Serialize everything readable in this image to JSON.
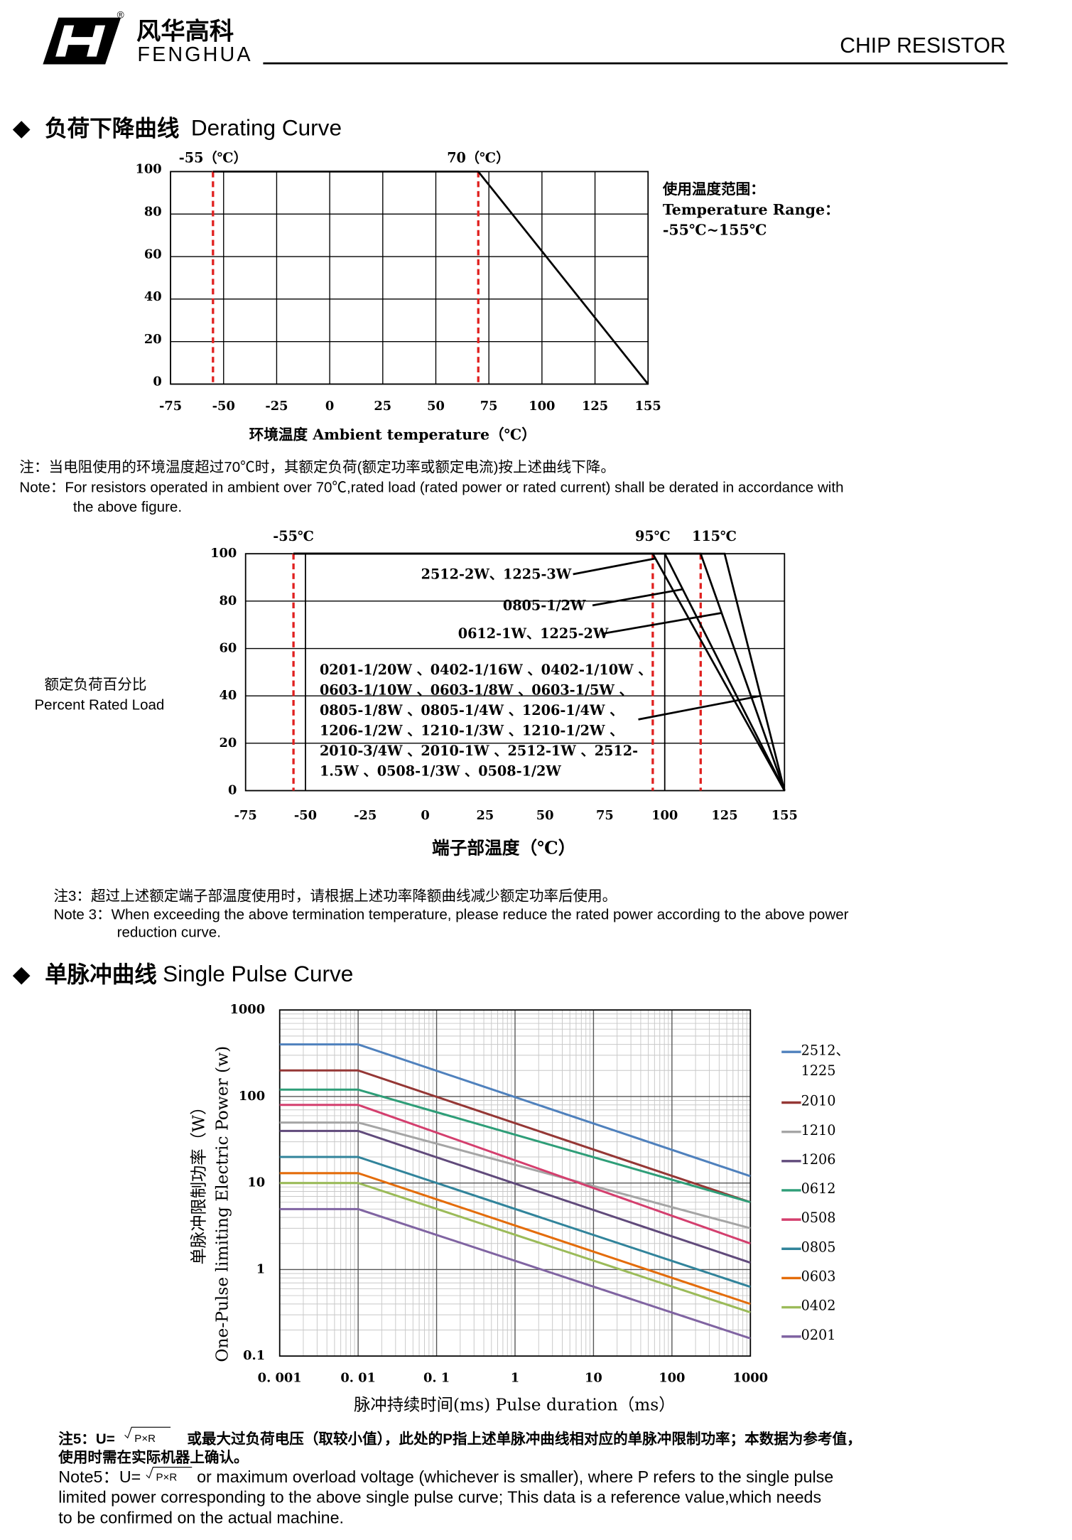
{
  "header": {
    "brand_cn": "风华高科",
    "brand_en": "FENGHUA",
    "registered": "®",
    "doc_type": "CHIP RESISTOR"
  },
  "sections": [
    {
      "title_cn": "负荷下降曲线",
      "title_en": "Derating Curve"
    },
    {
      "title_cn": "单脉冲曲线",
      "title_en": "Single Pulse Curve"
    }
  ],
  "notes": {
    "note1": {
      "cn": "注：当电阻使用的环境温度超过70℃时，其额定负荷(额定功率或额定电流)按上述曲线下降。",
      "en": [
        "Note：For resistors operated in ambient over 70℃,rated load (rated power or rated current) shall be derated in accordance with",
        "the above figure."
      ]
    },
    "note3": {
      "cn": "注3：超过上述额定端子部温度使用时，请根据上述功率降额曲线减少额定功率后使用。",
      "en": [
        "Note 3：When exceeding the above termination temperature, please reduce the rated power according to the above power",
        "reduction curve."
      ]
    },
    "note5": {
      "cn_prefix": "注5：U=",
      "cn_formula": "P×R",
      "cn_rest": "或最大过负荷电压（取较小值），此处的P指上述单脉冲曲线相对应的单脉冲限制功率；本数据为参考值，",
      "cn_line2": "使用时需在实际机器上确认。",
      "en_prefix": "Note5：U=",
      "en_formula": "P×R",
      "en_rest": "or maximum overload voltage (whichever is smaller), where P refers to the single pulse",
      "en_lines": [
        "limited power corresponding to the above single pulse curve; This data is a reference value,which needs",
        "to be confirmed on the actual machine."
      ]
    }
  },
  "chart_data": [
    {
      "type": "line",
      "x_label": "环境温度 Ambient temperature（℃）",
      "annotations": [
        {
          "x": -55,
          "label": "-55（℃）"
        },
        {
          "x": 70,
          "label": "70（℃）"
        }
      ],
      "side_text": [
        "使用温度范围：",
        "Temperature Range：",
        "-55℃~155℃"
      ],
      "xlim": [
        -75,
        155
      ],
      "xticks": [
        -75,
        -50,
        -25,
        0,
        25,
        50,
        75,
        100,
        125,
        155
      ],
      "ylim": [
        0,
        100
      ],
      "yticks": [
        0,
        20,
        40,
        60,
        80,
        100
      ],
      "grid": "both",
      "series": [
        {
          "x": [
            -55,
            70,
            155
          ],
          "values": [
            100,
            100,
            0
          ],
          "color": "#000000"
        }
      ]
    },
    {
      "type": "line",
      "x_label": "端子部温度（℃）",
      "y_label": [
        "额定负荷百分比",
        "Percent Rated Load"
      ],
      "annotations": [
        {
          "x": -55,
          "label": "-55℃"
        },
        {
          "x": 95,
          "label": "95℃"
        },
        {
          "x": 115,
          "label": "115℃"
        }
      ],
      "xlim": [
        -75,
        155
      ],
      "xticks": [
        -75,
        -50,
        -25,
        0,
        25,
        50,
        75,
        100,
        125,
        155
      ],
      "ylim": [
        0,
        100
      ],
      "yticks": [
        0,
        20,
        40,
        60,
        80,
        100
      ],
      "grid": "y",
      "series": [
        {
          "x": [
            -55,
            95,
            155
          ],
          "values": [
            100,
            100,
            0
          ],
          "color": "#000000"
        },
        {
          "x": [
            -55,
            100,
            155
          ],
          "values": [
            100,
            100,
            0
          ],
          "color": "#000000"
        },
        {
          "x": [
            -55,
            115,
            155
          ],
          "values": [
            100,
            100,
            0
          ],
          "color": "#000000"
        },
        {
          "x": [
            -55,
            125,
            155
          ],
          "values": [
            100,
            100,
            0
          ],
          "color": "#000000"
        }
      ],
      "labels": [
        [
          "2512-2W、1225-3W"
        ],
        [
          "0805-1/2W"
        ],
        [
          "0612-1W、1225-2W"
        ],
        [
          "0201-1/20W 、0402-1/16W 、0402-1/10W 、",
          "0603-1/10W 、0603-1/8W  、0603-1/5W  、",
          "0805-1/8W  、0805-1/4W  、1206-1/4W  、",
          "1206-1/2W 、1210-1/3W  、1210-1/2W  、",
          "2010-3/4W 、2010-1W 、2512-1W 、2512-",
          "1.5W  、0508-1/3W 、0508-1/2W"
        ]
      ]
    },
    {
      "type": "line",
      "log_x": true,
      "log_y": true,
      "grid": "both",
      "minor_grid": true,
      "legend": "right",
      "x_label": "脉冲持续时间(ms) Pulse duration（ms）",
      "y_label": [
        "单脉冲限制功率（W）",
        "One-Pulse limiting Electric Power (w)"
      ],
      "xlim": [
        0.001,
        1000
      ],
      "xticks": [
        {
          "value": 0.001,
          "label": "0. 001"
        },
        {
          "value": 0.01,
          "label": "0. 01"
        },
        {
          "value": 0.1,
          "label": "0. 1"
        },
        1,
        10,
        100,
        1000
      ],
      "ylim": [
        0.1,
        1000
      ],
      "yticks": [
        0.1,
        1,
        10,
        100,
        1000
      ],
      "series": [
        {
          "name": "2512、1225",
          "color": "#4f81bd",
          "x": [
            0.001,
            0.01,
            1000
          ],
          "values": [
            400,
            400,
            12
          ]
        },
        {
          "name": "2010",
          "color": "#953735",
          "x": [
            0.001,
            0.01,
            1000
          ],
          "values": [
            200,
            200,
            6
          ]
        },
        {
          "name": "1210",
          "color": "#a5a5a5",
          "x": [
            0.001,
            0.01,
            1000
          ],
          "values": [
            50,
            50,
            3
          ]
        },
        {
          "name": "1206",
          "color": "#604a7b",
          "x": [
            0.001,
            0.01,
            1000
          ],
          "values": [
            40,
            40,
            1.2
          ]
        },
        {
          "name": "0612",
          "color": "#2e9e78",
          "x": [
            0.001,
            0.01,
            1000
          ],
          "values": [
            120,
            120,
            6
          ]
        },
        {
          "name": "0508",
          "color": "#d43f6e",
          "x": [
            0.001,
            0.01,
            1000
          ],
          "values": [
            80,
            80,
            2
          ]
        },
        {
          "name": "0805",
          "color": "#31849b",
          "x": [
            0.001,
            0.01,
            1000
          ],
          "values": [
            20,
            20,
            0.63
          ]
        },
        {
          "name": "0603",
          "color": "#e46c0a",
          "x": [
            0.001,
            0.01,
            1000
          ],
          "values": [
            13,
            13,
            0.4
          ]
        },
        {
          "name": "0402",
          "color": "#9bbb59",
          "x": [
            0.001,
            0.01,
            1000
          ],
          "values": [
            10,
            10,
            0.32
          ]
        },
        {
          "name": "0201",
          "color": "#8064a2",
          "x": [
            0.001,
            0.01,
            1000
          ],
          "values": [
            5,
            5,
            0.16
          ]
        }
      ]
    }
  ]
}
